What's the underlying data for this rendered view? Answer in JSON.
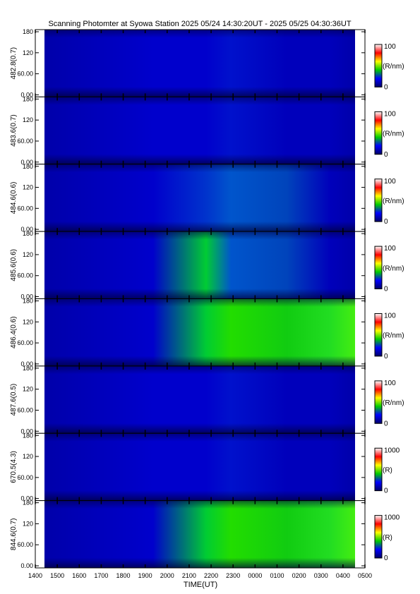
{
  "chart_data": {
    "type": "heatmap",
    "title": "Scanning Photomter at Syowa Station  2025 05/24 14:30:20UT - 2025 05/25 04:30:36UT",
    "xlabel": "TIME(UT)",
    "x_ticks": [
      "1400",
      "1500",
      "1600",
      "1700",
      "1800",
      "1900",
      "2000",
      "2100",
      "2200",
      "2300",
      "0000",
      "0100",
      "0200",
      "0300",
      "0400",
      "0500"
    ],
    "y_ticks": [
      "0.00",
      "60.00",
      "120",
      "180"
    ],
    "ylim": [
      0,
      180
    ],
    "colormap": [
      "#000066",
      "#0000ff",
      "#00cc00",
      "#ffff00",
      "#ff0000",
      "#ffffff"
    ],
    "panels": [
      {
        "ylabel": "482.8(0.7)",
        "cb_max": "100",
        "cb_min": "0",
        "cb_unit": "(R/nm)",
        "intensity": 0.12
      },
      {
        "ylabel": "483.6(0.7)",
        "cb_max": "100",
        "cb_min": "0",
        "cb_unit": "(R/nm)",
        "intensity": 0.18
      },
      {
        "ylabel": "484.6(0.6)",
        "cb_max": "100",
        "cb_min": "0",
        "cb_unit": "(R/nm)",
        "intensity": 0.3
      },
      {
        "ylabel": "485.6(0.6)",
        "cb_max": "100",
        "cb_min": "0",
        "cb_unit": "(R/nm)",
        "intensity": 0.45
      },
      {
        "ylabel": "486.4(0.6)",
        "cb_max": "100",
        "cb_min": "0",
        "cb_unit": "(R/nm)",
        "intensity": 0.6
      },
      {
        "ylabel": "487.6(0.5)",
        "cb_max": "100",
        "cb_min": "0",
        "cb_unit": "(R/nm)",
        "intensity": 0.1
      },
      {
        "ylabel": "670.5(4.3)",
        "cb_max": "1000",
        "cb_min": "0",
        "cb_unit": "(R)",
        "intensity": 0.14
      },
      {
        "ylabel": "844.6(0.7)",
        "cb_max": "1000",
        "cb_min": "0",
        "cb_unit": "(R)",
        "intensity": 0.75
      }
    ]
  }
}
